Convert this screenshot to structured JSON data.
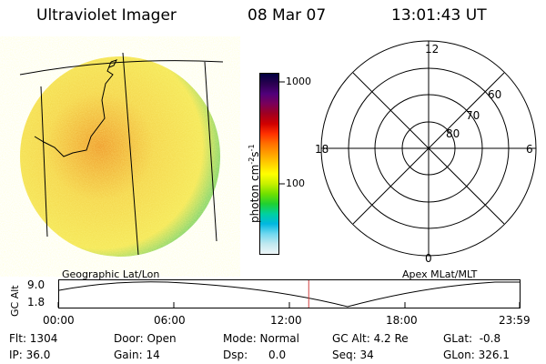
{
  "header": {
    "instrument": "Ultraviolet Imager",
    "date": "08 Mar 07",
    "time": "13:01:43 UT"
  },
  "colorbar": {
    "unit_label": "photon cm",
    "unit_exp1": "-2",
    "unit_s": "s",
    "unit_exp2": "-1",
    "tick_high": "1000",
    "tick_low": "100",
    "colors": [
      "#000040",
      "#2a0050",
      "#50007a",
      "#7a005a",
      "#a00020",
      "#d00000",
      "#ff3000",
      "#ff7000",
      "#ffa000",
      "#ffd000",
      "#ffff00",
      "#c8f000",
      "#70e000",
      "#20d030",
      "#00d0a0",
      "#00b8e0",
      "#70d8f0",
      "#c0e8f0",
      "#eef6f8"
    ]
  },
  "image_map": {
    "base_color": "#f5e85a",
    "hot_color": "#f0a030",
    "edge_color": "#90d870"
  },
  "polar": {
    "mlt_labels": [
      "12",
      "18",
      "6",
      "0"
    ],
    "lat_labels": [
      "60",
      "70",
      "80"
    ]
  },
  "orbit": {
    "left_label": "Geographic Lat/Lon",
    "right_label": "Apex MLat/MLT",
    "axis_label": "GC Alt",
    "y_labels": [
      "9.0",
      "1.8"
    ],
    "x_labels": [
      "00:00",
      "06:00",
      "12:00",
      "18:00",
      "23:59"
    ],
    "marker_time_hours": 13.03,
    "marker_color": "#d04040"
  },
  "status": {
    "flt": "Flt: 1304",
    "ip": "IP: 36.0",
    "door": "Door: Open",
    "gain": "Gain: 14",
    "mode": "Mode: Normal",
    "dsp": "Dsp:      0.0",
    "gcalt": "GC Alt: 4.2 Re",
    "seq": "Seq: 34",
    "glat": "GLat:  -0.8",
    "glon": "GLon: 326.1"
  }
}
